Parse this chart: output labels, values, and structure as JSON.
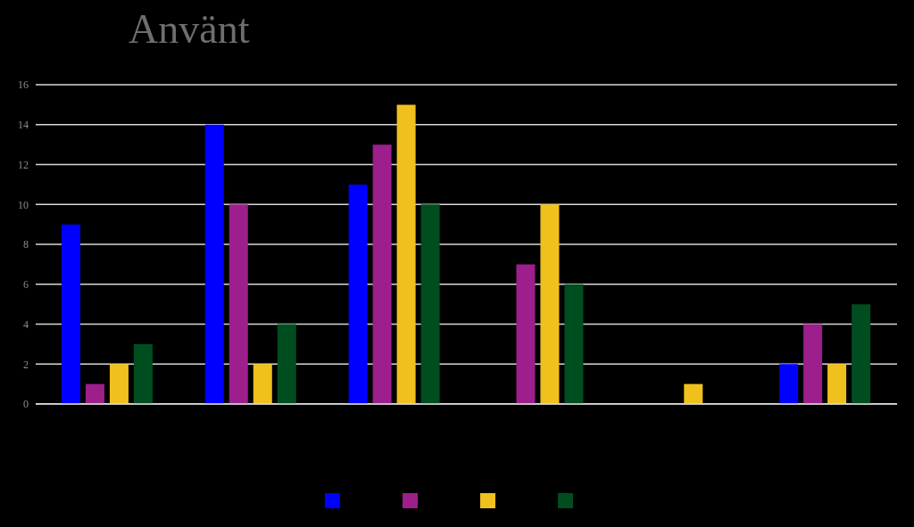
{
  "chart_data": {
    "type": "bar",
    "title": "Använt",
    "categories": [
      null,
      null,
      null,
      null,
      null,
      null
    ],
    "series": [
      {
        "color": "#0000ff",
        "values": [
          9,
          14,
          11,
          0,
          0,
          2
        ]
      },
      {
        "color": "#9c1f8c",
        "values": [
          1,
          10,
          13,
          7,
          0,
          4
        ]
      },
      {
        "color": "#f0c01c",
        "values": [
          2,
          2,
          15,
          10,
          1,
          2
        ]
      },
      {
        "color": "#004d1f",
        "values": [
          3,
          4,
          10,
          6,
          0,
          5
        ]
      }
    ],
    "ylim": [
      0,
      16
    ],
    "yticks": [
      0,
      2,
      4,
      6,
      8,
      10,
      12,
      14,
      16
    ],
    "grid": "y"
  }
}
